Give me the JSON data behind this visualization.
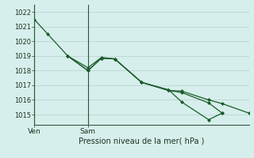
{
  "background_color": "#d7efec",
  "grid_color": "#c0d8d4",
  "line_color": "#1a5c2a",
  "marker_color": "#1a5c2a",
  "title": "Pression niveau de la mer( hPa )",
  "ylim": [
    1014.3,
    1022.5
  ],
  "yticks": [
    1015,
    1016,
    1017,
    1018,
    1019,
    1020,
    1021,
    1022
  ],
  "ven_x": 0,
  "sam_x": 8,
  "series": [
    [
      0,
      1021.5,
      2,
      1020.5,
      5,
      1019.0,
      8,
      1018.0,
      10,
      1018.85,
      12,
      1018.8,
      16,
      1017.2,
      20,
      1016.65,
      22,
      1016.6,
      26,
      1016.0,
      28,
      1015.75,
      32,
      1015.1
    ],
    [
      5,
      1019.0,
      8,
      1018.0,
      10,
      1018.85,
      12,
      1018.8,
      16,
      1017.2,
      20,
      1016.7,
      22,
      1015.85,
      26,
      1014.65,
      28,
      1015.1
    ],
    [
      5,
      1019.0,
      8,
      1018.2,
      10,
      1018.9,
      12,
      1018.8,
      16,
      1017.2,
      20,
      1016.65,
      22,
      1016.5,
      26,
      1015.8,
      28,
      1015.1
    ]
  ],
  "xticks_pos": [
    0,
    8
  ],
  "xtick_labels": [
    "Ven",
    "Sam"
  ],
  "xmin": 0,
  "xmax": 32
}
